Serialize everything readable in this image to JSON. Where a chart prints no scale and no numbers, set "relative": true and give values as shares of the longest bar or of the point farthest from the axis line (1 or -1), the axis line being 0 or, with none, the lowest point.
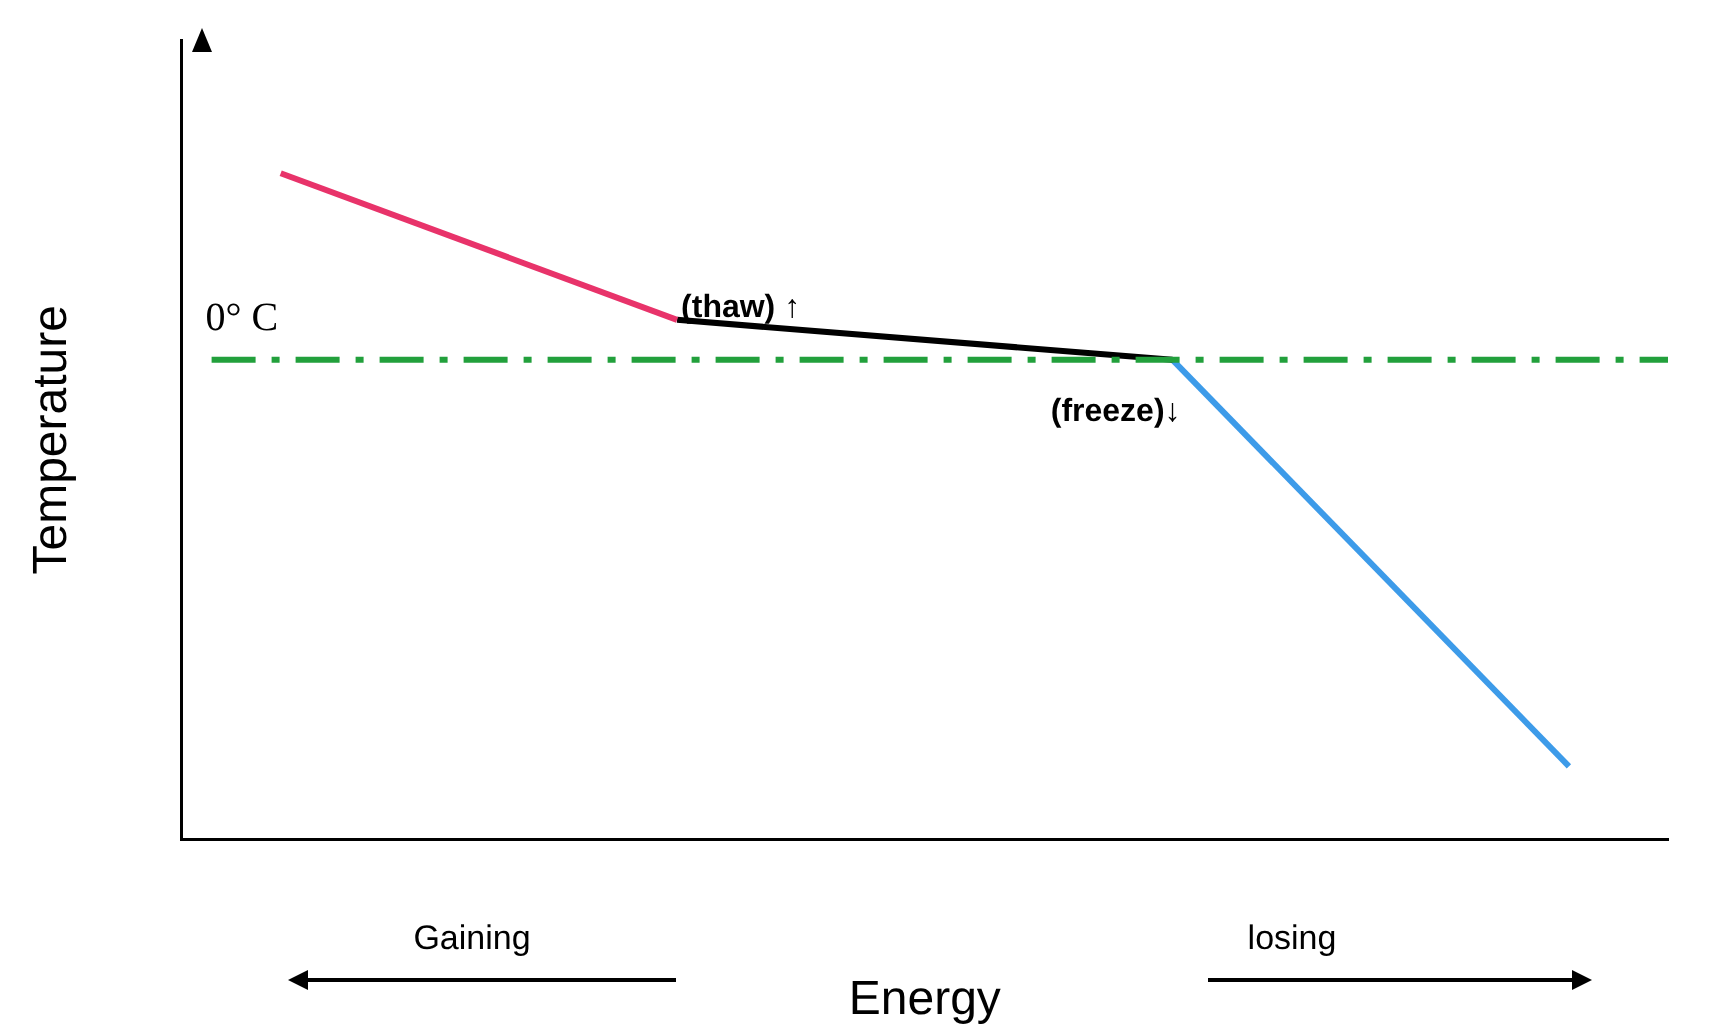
{
  "chart_data": {
    "type": "line",
    "relative": true,
    "xlabel": "Energy",
    "ylabel": "Temperature",
    "categories": [
      null,
      null,
      null,
      null,
      null,
      null,
      null,
      null,
      null,
      null,
      null,
      null,
      null,
      null,
      null,
      null
    ],
    "series": [
      {
        "color": "#e8336a",
        "values": [
          null,
          1,
          null,
          null,
          null,
          0.78,
          null,
          null,
          null,
          null,
          null,
          null,
          null,
          null,
          null,
          null
        ]
      },
      {
        "color": "#000000",
        "values": [
          null,
          null,
          null,
          null,
          null,
          0.78,
          null,
          null,
          null,
          null,
          0.72,
          null,
          null,
          null,
          null,
          null
        ]
      },
      {
        "color": "#3d9be9",
        "values": [
          null,
          null,
          null,
          null,
          null,
          null,
          null,
          null,
          null,
          null,
          0.72,
          null,
          null,
          null,
          0.11,
          null
        ]
      }
    ],
    "ref_lines": [
      {
        "axis": "y",
        "value": 0.72,
        "label": "0° C",
        "color": "#22a03c",
        "line_style": "dashed"
      }
    ],
    "annotations": [
      "(thaw) ↑",
      "(freeze)↓",
      "Gaining",
      "losing"
    ],
    "grid": false,
    "legend": false,
    "marker": "none",
    "line_style": "solid"
  }
}
